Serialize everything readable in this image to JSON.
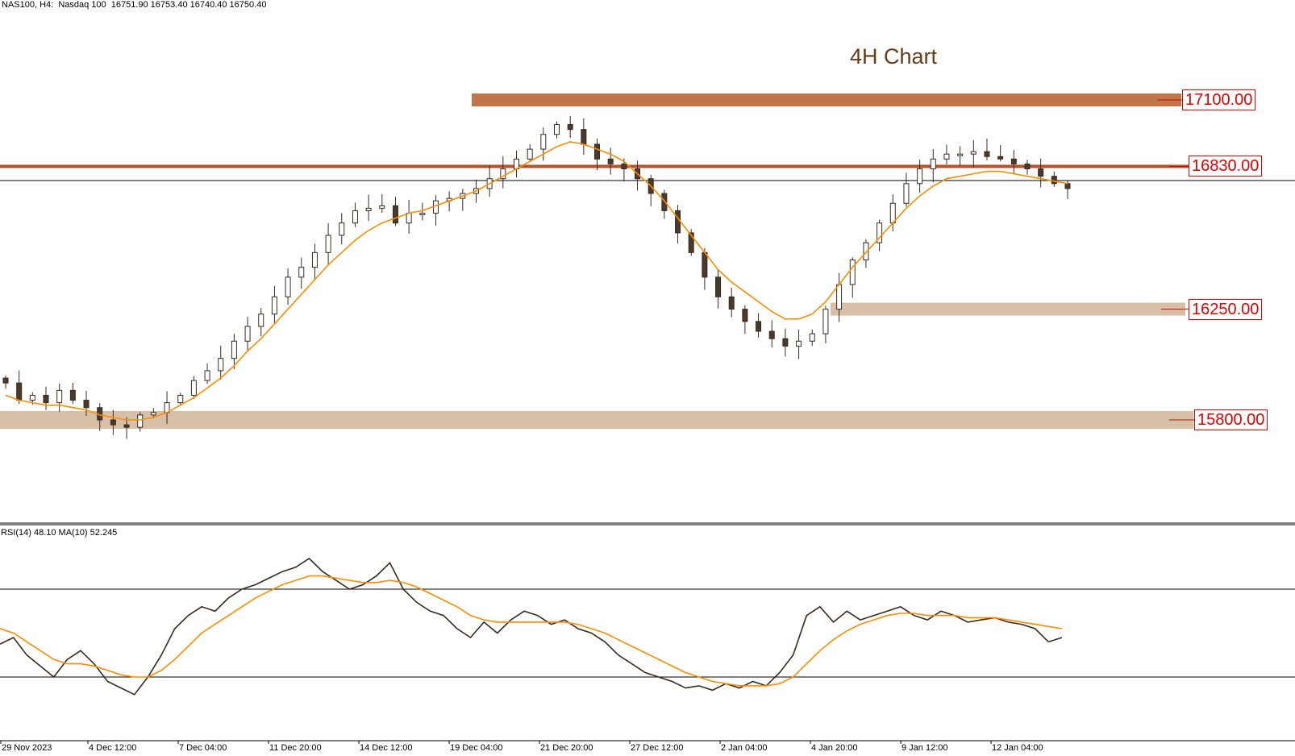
{
  "header": {
    "symbol": "NAS100, H4:  Nasdaq 100  16751.90 16753.40 16740.40 16750.40",
    "title": "4H Chart"
  },
  "rsi_header": "RSI(14) 48.10 MA(10) 52.245",
  "colors": {
    "candle_up_fill": "#ffffff",
    "candle_down_fill": "#4a3a2e",
    "candle_line": "#3a2a1e",
    "ma_line": "#ff8c00",
    "resistance_zone": "#c0764a",
    "support_zone": "#d7bfa8",
    "level_line": "#b5522a",
    "level_label": "#e00000",
    "rsi_line": "#3a2a1e"
  },
  "levels": [
    {
      "name": "resistance-17100",
      "label": "17100.00",
      "price": 17100
    },
    {
      "name": "resistance-16830",
      "label": "16830.00",
      "price": 16830
    },
    {
      "name": "support-16250",
      "label": "16250.00",
      "price": 16250
    },
    {
      "name": "support-15800",
      "label": "15800.00",
      "price": 15800
    }
  ],
  "x_axis_labels": [
    "29 Nov 2023",
    "4 Dec 12:00",
    "7 Dec 04:00",
    "11 Dec 20:00",
    "14 Dec 12:00",
    "19 Dec 04:00",
    "21 Dec 20:00",
    "27 Dec 12:00",
    "2 Jan 04:00",
    "4 Jan 20:00",
    "9 Jan 12:00",
    "12 Jan 04:00"
  ],
  "chart_data": {
    "type": "candlestick",
    "symbol": "NAS100",
    "timeframe": "H4",
    "close_path": [
      15950,
      15880,
      15900,
      15870,
      15920,
      15880,
      15850,
      15800,
      15780,
      15770,
      15820,
      15830,
      15870,
      15900,
      15960,
      16000,
      16050,
      16120,
      16180,
      16230,
      16300,
      16380,
      16420,
      16480,
      16550,
      16600,
      16650,
      16660,
      16670,
      16600,
      16640,
      16640,
      16690,
      16700,
      16720,
      16740,
      16780,
      16820,
      16860,
      16900,
      16960,
      17000,
      16980,
      16920,
      16860,
      16840,
      16820,
      16780,
      16720,
      16650,
      16560,
      16480,
      16380,
      16300,
      16250,
      16200,
      16160,
      16130,
      16100,
      16120,
      16150,
      16250,
      16350,
      16450,
      16520,
      16600,
      16680,
      16760,
      16820,
      16860,
      16880,
      16880,
      16890,
      16870,
      16860,
      16840,
      16820,
      16790,
      16760,
      16740
    ],
    "ma_path": [
      15900,
      15880,
      15870,
      15860,
      15860,
      15850,
      15840,
      15820,
      15810,
      15800,
      15800,
      15810,
      15830,
      15860,
      15890,
      15930,
      15970,
      16020,
      16080,
      16130,
      16190,
      16250,
      16310,
      16370,
      16430,
      16480,
      16530,
      16570,
      16600,
      16620,
      16640,
      16650,
      16670,
      16690,
      16710,
      16730,
      16760,
      16790,
      16820,
      16850,
      16880,
      16910,
      16930,
      16920,
      16900,
      16880,
      16850,
      16800,
      16750,
      16690,
      16620,
      16550,
      16480,
      16410,
      16360,
      16320,
      16280,
      16240,
      16210,
      16210,
      16230,
      16280,
      16350,
      16420,
      16480,
      16540,
      16600,
      16660,
      16710,
      16750,
      16780,
      16790,
      16800,
      16810,
      16810,
      16800,
      16790,
      16780,
      16770,
      16760
    ],
    "levels": [
      17100,
      16830,
      16250,
      15800
    ],
    "rsi": {
      "period": 14,
      "value": 48.1,
      "ma_period": 10,
      "ma_value": 52.245,
      "bands": [
        70,
        30
      ],
      "rsi_path": [
        45,
        48,
        40,
        35,
        30,
        38,
        42,
        36,
        28,
        25,
        22,
        30,
        40,
        52,
        58,
        62,
        60,
        66,
        70,
        72,
        75,
        78,
        80,
        84,
        78,
        74,
        70,
        72,
        76,
        82,
        70,
        64,
        60,
        58,
        52,
        48,
        55,
        50,
        56,
        60,
        58,
        54,
        56,
        52,
        50,
        46,
        40,
        36,
        32,
        30,
        28,
        25,
        26,
        24,
        27,
        25,
        28,
        26,
        32,
        40,
        58,
        62,
        55,
        60,
        56,
        58,
        60,
        62,
        58,
        56,
        60,
        58,
        55,
        56,
        57,
        55,
        54,
        52,
        46,
        48
      ],
      "ma_path": [
        52,
        50,
        46,
        42,
        38,
        36,
        36,
        35,
        33,
        31,
        30,
        30,
        33,
        38,
        44,
        50,
        54,
        58,
        62,
        66,
        69,
        72,
        74,
        76,
        76,
        75,
        74,
        73,
        73,
        74,
        73,
        71,
        68,
        65,
        62,
        58,
        56,
        55,
        55,
        55,
        55,
        55,
        55,
        54,
        52,
        50,
        47,
        44,
        41,
        38,
        35,
        32,
        30,
        28,
        27,
        26,
        26,
        26,
        27,
        30,
        36,
        42,
        47,
        51,
        54,
        56,
        58,
        59,
        59,
        58,
        58,
        58,
        57,
        57,
        57,
        56,
        55,
        54,
        53,
        52
      ]
    }
  }
}
